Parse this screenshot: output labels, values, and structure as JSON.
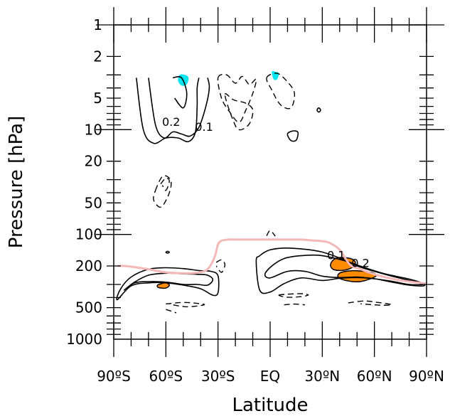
{
  "chart_data": {
    "type": "contour",
    "title": "",
    "xlabel": "Latitude",
    "ylabel": "Pressure [hPa]",
    "xlim": [
      -90,
      90
    ],
    "ylim_hpa": [
      1000,
      1
    ],
    "y_scale": "log",
    "grid": false,
    "x_ticks": [
      {
        "value": -90,
        "label": "90ºS"
      },
      {
        "value": -60,
        "label": "60ºS"
      },
      {
        "value": -30,
        "label": "30ºS"
      },
      {
        "value": 0,
        "label": "EQ"
      },
      {
        "value": 30,
        "label": "30ºN"
      },
      {
        "value": 60,
        "label": "60ºN"
      },
      {
        "value": 90,
        "label": "90ºN"
      }
    ],
    "y_ticks": [
      {
        "value": 1,
        "label": "1"
      },
      {
        "value": 2,
        "label": "2"
      },
      {
        "value": 5,
        "label": "5"
      },
      {
        "value": 10,
        "label": "10"
      },
      {
        "value": 20,
        "label": "20"
      },
      {
        "value": 50,
        "label": "50"
      },
      {
        "value": 100,
        "label": "100"
      },
      {
        "value": 200,
        "label": "200"
      },
      {
        "value": 500,
        "label": "500"
      },
      {
        "value": 1000,
        "label": "1000"
      }
    ],
    "contour_labels": [
      {
        "text": "0.2",
        "lat": -57,
        "p": 8.5
      },
      {
        "text": "0.1",
        "lat": -38,
        "p": 9.5
      },
      {
        "text": "0.1",
        "lat": 38,
        "p": 160
      },
      {
        "text": "0.2",
        "lat": 52,
        "p": 190
      }
    ],
    "colors": {
      "positive_fill": "#ff8c00",
      "negative_fill": "#00e5ee",
      "tropopause": "#f4b8b8",
      "contour": "#000000"
    },
    "tropopause": {
      "lat": [
        -88,
        -84,
        -78,
        -70,
        -60,
        -50,
        -42,
        -36,
        -32,
        -30,
        -28,
        -24,
        -18,
        -10,
        0,
        10,
        18,
        24,
        30,
        34,
        40,
        46,
        52,
        60,
        70,
        80,
        90
      ],
      "p": [
        200,
        200,
        205,
        215,
        230,
        235,
        232,
        215,
        165,
        125,
        115,
        112,
        112,
        112,
        112,
        112,
        112,
        114,
        116,
        120,
        140,
        195,
        215,
        240,
        265,
        282,
        295
      ]
    },
    "positive_regions": [
      {
        "lat": [
          37,
          40,
          45,
          48,
          49,
          47,
          42,
          37,
          35,
          35
        ],
        "p": [
          172,
          166,
          168,
          175,
          188,
          208,
          220,
          218,
          205,
          188
        ]
      },
      {
        "lat": [
          41,
          47,
          54,
          59,
          61,
          57,
          51,
          45,
          40,
          39
        ],
        "p": [
          230,
          222,
          225,
          232,
          248,
          268,
          283,
          278,
          263,
          245
        ]
      },
      {
        "lat": [
          -64,
          -60,
          -58,
          -60,
          -64,
          -65
        ],
        "p": [
          300,
          290,
          305,
          325,
          322,
          310
        ]
      }
    ],
    "negative_regions": [
      {
        "lat": [
          -52,
          -49,
          -47,
          -48,
          -51,
          -53
        ],
        "p": [
          3.0,
          3.0,
          3.2,
          3.7,
          3.8,
          3.4
        ]
      },
      {
        "lat": [
          1,
          3,
          5,
          4,
          2
        ],
        "p": [
          2.8,
          2.8,
          2.9,
          3.3,
          3.3
        ]
      }
    ],
    "solid_contours": [
      {
        "lat": [
          -77,
          -73,
          -67,
          -60,
          -53,
          -47,
          -43,
          -42,
          -42,
          -41
        ],
        "p": [
          3.2,
          10,
          13.5,
          12,
          12,
          13,
          10.5,
          6,
          4,
          3.2
        ]
      },
      {
        "lat": [
          -70,
          -66,
          -61,
          -56,
          -51,
          -46,
          -41,
          -37,
          -35,
          -36
        ],
        "p": [
          3.2,
          9,
          12,
          10.5,
          11,
          11.5,
          9.5,
          6,
          4,
          3.2
        ]
      },
      {
        "lat": [
          -56,
          -51,
          -48,
          -50,
          -55
        ],
        "p": [
          3.2,
          3.2,
          4.5,
          6.2,
          5
        ]
      },
      {
        "lat": [
          -88,
          -86,
          -80,
          -70,
          -60,
          -50,
          -40,
          -34,
          -30,
          -30,
          -33,
          -40,
          -50,
          -60,
          -70,
          -80,
          -88
        ],
        "p": [
          420,
          330,
          255,
          215,
          208,
          212,
          222,
          225,
          248,
          360,
          380,
          330,
          305,
          290,
          290,
          310,
          420
        ]
      },
      {
        "lat": [
          -84,
          -78,
          -70,
          -60,
          -50,
          -42,
          -36,
          -33,
          -36,
          -42,
          -50,
          -60,
          -70,
          -78,
          -84
        ],
        "p": [
          340,
          285,
          245,
          235,
          238,
          240,
          245,
          270,
          305,
          300,
          300,
          285,
          282,
          290,
          340
        ]
      },
      {
        "lat": [
          -8,
          -6,
          -1,
          7,
          17,
          29,
          40,
          50,
          60,
          70,
          80,
          88,
          88,
          80,
          70,
          60,
          50,
          40,
          30,
          18,
          8,
          0,
          -6,
          -8
        ],
        "p": [
          180,
          160,
          142,
          135,
          137,
          146,
          168,
          200,
          225,
          250,
          275,
          295,
          310,
          305,
          285,
          265,
          258,
          262,
          275,
          260,
          295,
          355,
          340,
          180
        ]
      },
      {
        "lat": [
          -3,
          1,
          8,
          17,
          28,
          38,
          46,
          56,
          67,
          78,
          86,
          88,
          80,
          70,
          60,
          50,
          40,
          30,
          20,
          10,
          0,
          -3
        ],
        "p": [
          240,
          200,
          170,
          160,
          158,
          170,
          185,
          212,
          240,
          262,
          285,
          300,
          300,
          280,
          265,
          255,
          258,
          250,
          225,
          225,
          260,
          240
        ]
      },
      {
        "lat": [
          10,
          13,
          16,
          15,
          12,
          10
        ],
        "p": [
          11,
          10.3,
          10.6,
          12.6,
          12.7,
          11
        ]
      },
      {
        "lat": [
          27,
          28,
          29,
          28,
          27
        ],
        "p": [
          6.5,
          6.2,
          6.5,
          6.8,
          6.5
        ]
      },
      {
        "lat": [
          -60,
          -59,
          -58,
          -59,
          -60
        ],
        "p": [
          148,
          145,
          148,
          151,
          148
        ]
      }
    ],
    "dashed_contours": [
      {
        "lat": [
          -66,
          -62,
          -58,
          -57,
          -59,
          -63,
          -67,
          -66
        ],
        "p": [
          38,
          28,
          29,
          34,
          44,
          55,
          47,
          38
        ]
      },
      {
        "lat": [
          -63,
          -60,
          -58,
          -60,
          -62
        ],
        "p": [
          33,
          29,
          31,
          38,
          34
        ]
      },
      {
        "lat": [
          -30,
          -25,
          -20,
          -16,
          -12,
          -8,
          -10,
          -14,
          -18,
          -24,
          -28,
          -30
        ],
        "p": [
          3.2,
          3.0,
          3.6,
          3.1,
          3.7,
          3.3,
          4.5,
          6.5,
          8.5,
          6.5,
          5,
          3.2
        ]
      },
      {
        "lat": [
          -26,
          -21,
          -14,
          -10,
          -12,
          -18,
          -22,
          -26
        ],
        "p": [
          4.6,
          5.2,
          5.6,
          6.5,
          8.8,
          10,
          7.6,
          4.6
        ]
      },
      {
        "lat": [
          -2,
          4,
          10,
          14,
          12,
          6,
          1,
          -2
        ],
        "p": [
          3.2,
          2.9,
          3.5,
          4.5,
          6.2,
          5.8,
          4.2,
          3.2
        ]
      },
      {
        "lat": [
          -31,
          -28,
          -26,
          -28,
          -31
        ],
        "p": [
          185,
          175,
          195,
          230,
          200
        ]
      },
      {
        "lat": [
          -2,
          0,
          3
        ],
        "p": [
          103,
          92,
          104
        ]
      },
      {
        "lat": [
          5,
          10,
          18,
          22,
          18,
          10,
          5
        ],
        "p": [
          380,
          372,
          368,
          378,
          392,
          398,
          380
        ]
      },
      {
        "lat": [
          8,
          14,
          20
        ],
        "p": [
          470,
          462,
          470
        ]
      },
      {
        "lat": [
          -60,
          -50,
          -42,
          -38,
          -48,
          -58
        ],
        "p": [
          460,
          446,
          455,
          470,
          490,
          462
        ]
      },
      {
        "lat": [
          -60,
          -54
        ],
        "p": [
          520,
          560
        ]
      },
      {
        "lat": [
          45,
          54,
          62,
          70,
          64,
          52
        ],
        "p": [
          450,
          432,
          446,
          468,
          474,
          460
        ]
      }
    ]
  }
}
